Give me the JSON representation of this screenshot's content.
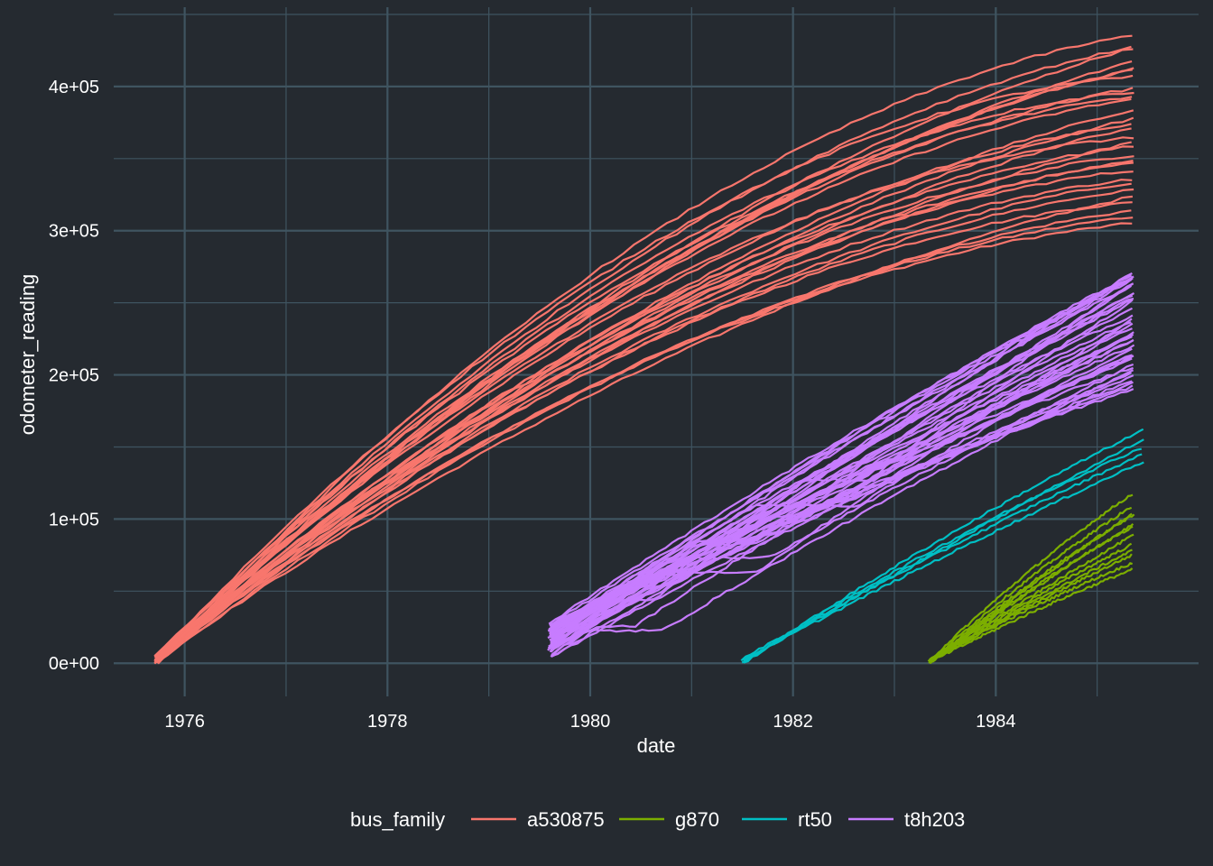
{
  "chart_data": {
    "type": "line",
    "title": "",
    "xlabel": "date",
    "ylabel": "odometer_reading",
    "x_ticks": [
      "1976",
      "1978",
      "1980",
      "1982",
      "1984"
    ],
    "x_tick_values": [
      1976,
      1978,
      1980,
      1982,
      1984
    ],
    "y_ticks": [
      "0e+00",
      "1e+05",
      "2e+05",
      "3e+05",
      "4e+05"
    ],
    "y_tick_values": [
      0,
      100000,
      200000,
      300000,
      400000
    ],
    "xlim": [
      1975.3,
      1986.0
    ],
    "ylim": [
      -23000,
      455000
    ],
    "grid": true,
    "legend": {
      "title": "bus_family",
      "position": "bottom",
      "entries": [
        "a530875",
        "g870",
        "rt50",
        "t8h203"
      ]
    },
    "series": [
      {
        "name": "a530875",
        "color": "#f8766d",
        "count": 30,
        "start": 1975.72,
        "end": 1985.35,
        "start_range": [
          0,
          5000
        ],
        "end_range": [
          305000,
          445000
        ],
        "mid_value_at_1980": [
          160000,
          245000
        ]
      },
      {
        "name": "g870",
        "color": "#7cae00",
        "count": 12,
        "start": 1983.35,
        "end": 1985.35,
        "start_range": [
          0,
          2000
        ],
        "end_range": [
          65000,
          120000
        ]
      },
      {
        "name": "rt50",
        "color": "#00bfc4",
        "count": 5,
        "start": 1981.5,
        "end": 1985.45,
        "start_range": [
          0,
          2500
        ],
        "end_range": [
          140000,
          162000
        ]
      },
      {
        "name": "t8h203",
        "color": "#c77cff",
        "count": 40,
        "start": 1979.6,
        "end": 1985.35,
        "start_range": [
          3000,
          28000
        ],
        "end_range": [
          190000,
          282000
        ]
      }
    ]
  }
}
